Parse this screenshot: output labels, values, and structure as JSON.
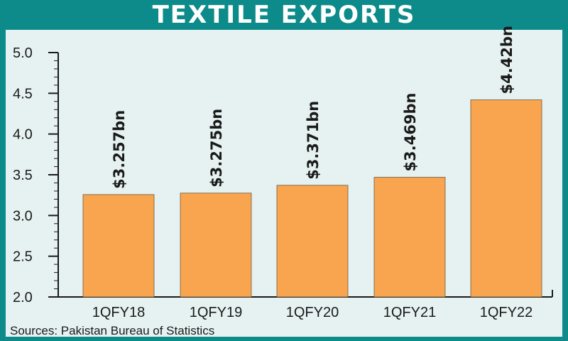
{
  "chart_data": {
    "type": "bar",
    "title": "TEXTILE EXPORTS",
    "categories": [
      "1QFY18",
      "1QFY19",
      "1QFY20",
      "1QFY21",
      "1QFY22"
    ],
    "values": [
      3.257,
      3.275,
      3.371,
      3.469,
      4.42
    ],
    "value_labels": [
      "$3.257bn",
      "$3.275bn",
      "$3.371bn",
      "$3.469bn",
      "$4.42bn"
    ],
    "yticks": [
      "2.0",
      "2.5",
      "3.0",
      "3.5",
      "4.0",
      "4.5",
      "5.0"
    ],
    "ylim": [
      2.0,
      5.0
    ],
    "xlabel": "",
    "ylabel": "",
    "grid": false,
    "source": "Sources: Pakistan Bureau of Statistics",
    "colors": {
      "bar": "#f9a54f",
      "background": "#e6f2f1",
      "frame": "#0d8a8a"
    }
  }
}
